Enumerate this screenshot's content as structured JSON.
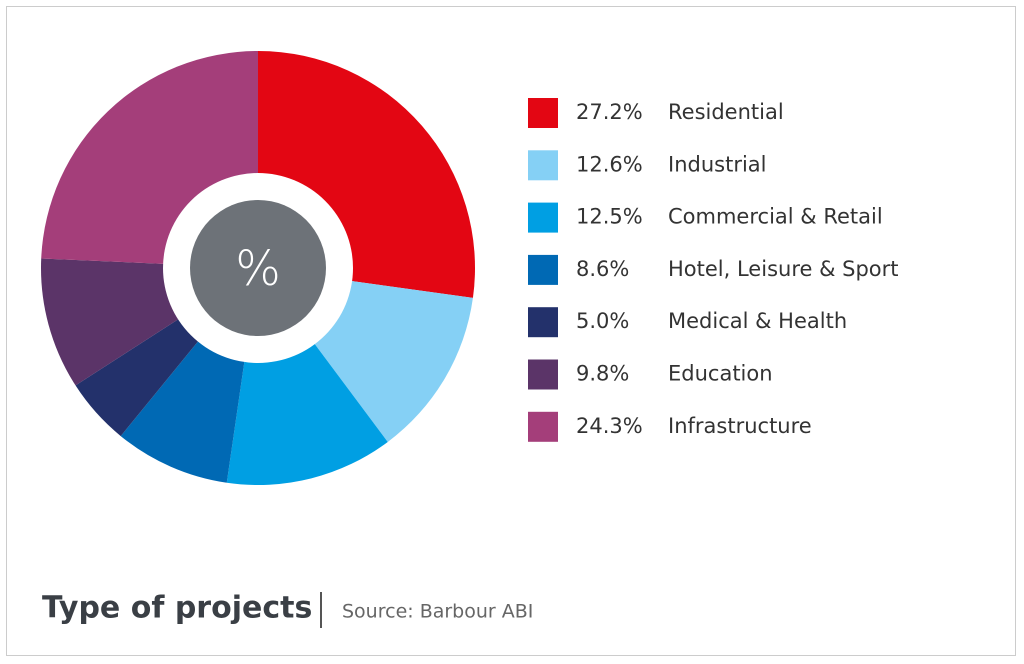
{
  "chart_data": {
    "type": "donut",
    "title": "Type of projects",
    "source": "Source: Barbour ABI",
    "center_label": "%",
    "categories": [
      "Residential",
      "Industrial",
      "Commercial & Retail",
      "Hotel, Leisure & Sport",
      "Medical & Health",
      "Education",
      "Infrastructure"
    ],
    "values": [
      27.2,
      12.6,
      12.5,
      8.6,
      5.0,
      9.8,
      24.3
    ],
    "value_labels": [
      "27.2%",
      "12.6%",
      "12.5%",
      "8.6%",
      "5.0%",
      "9.8%",
      "24.3%"
    ],
    "colors": [
      "#e30613",
      "#85d0f5",
      "#009fe3",
      "#0069b4",
      "#23316b",
      "#5b3468",
      "#a43e7a"
    ]
  }
}
